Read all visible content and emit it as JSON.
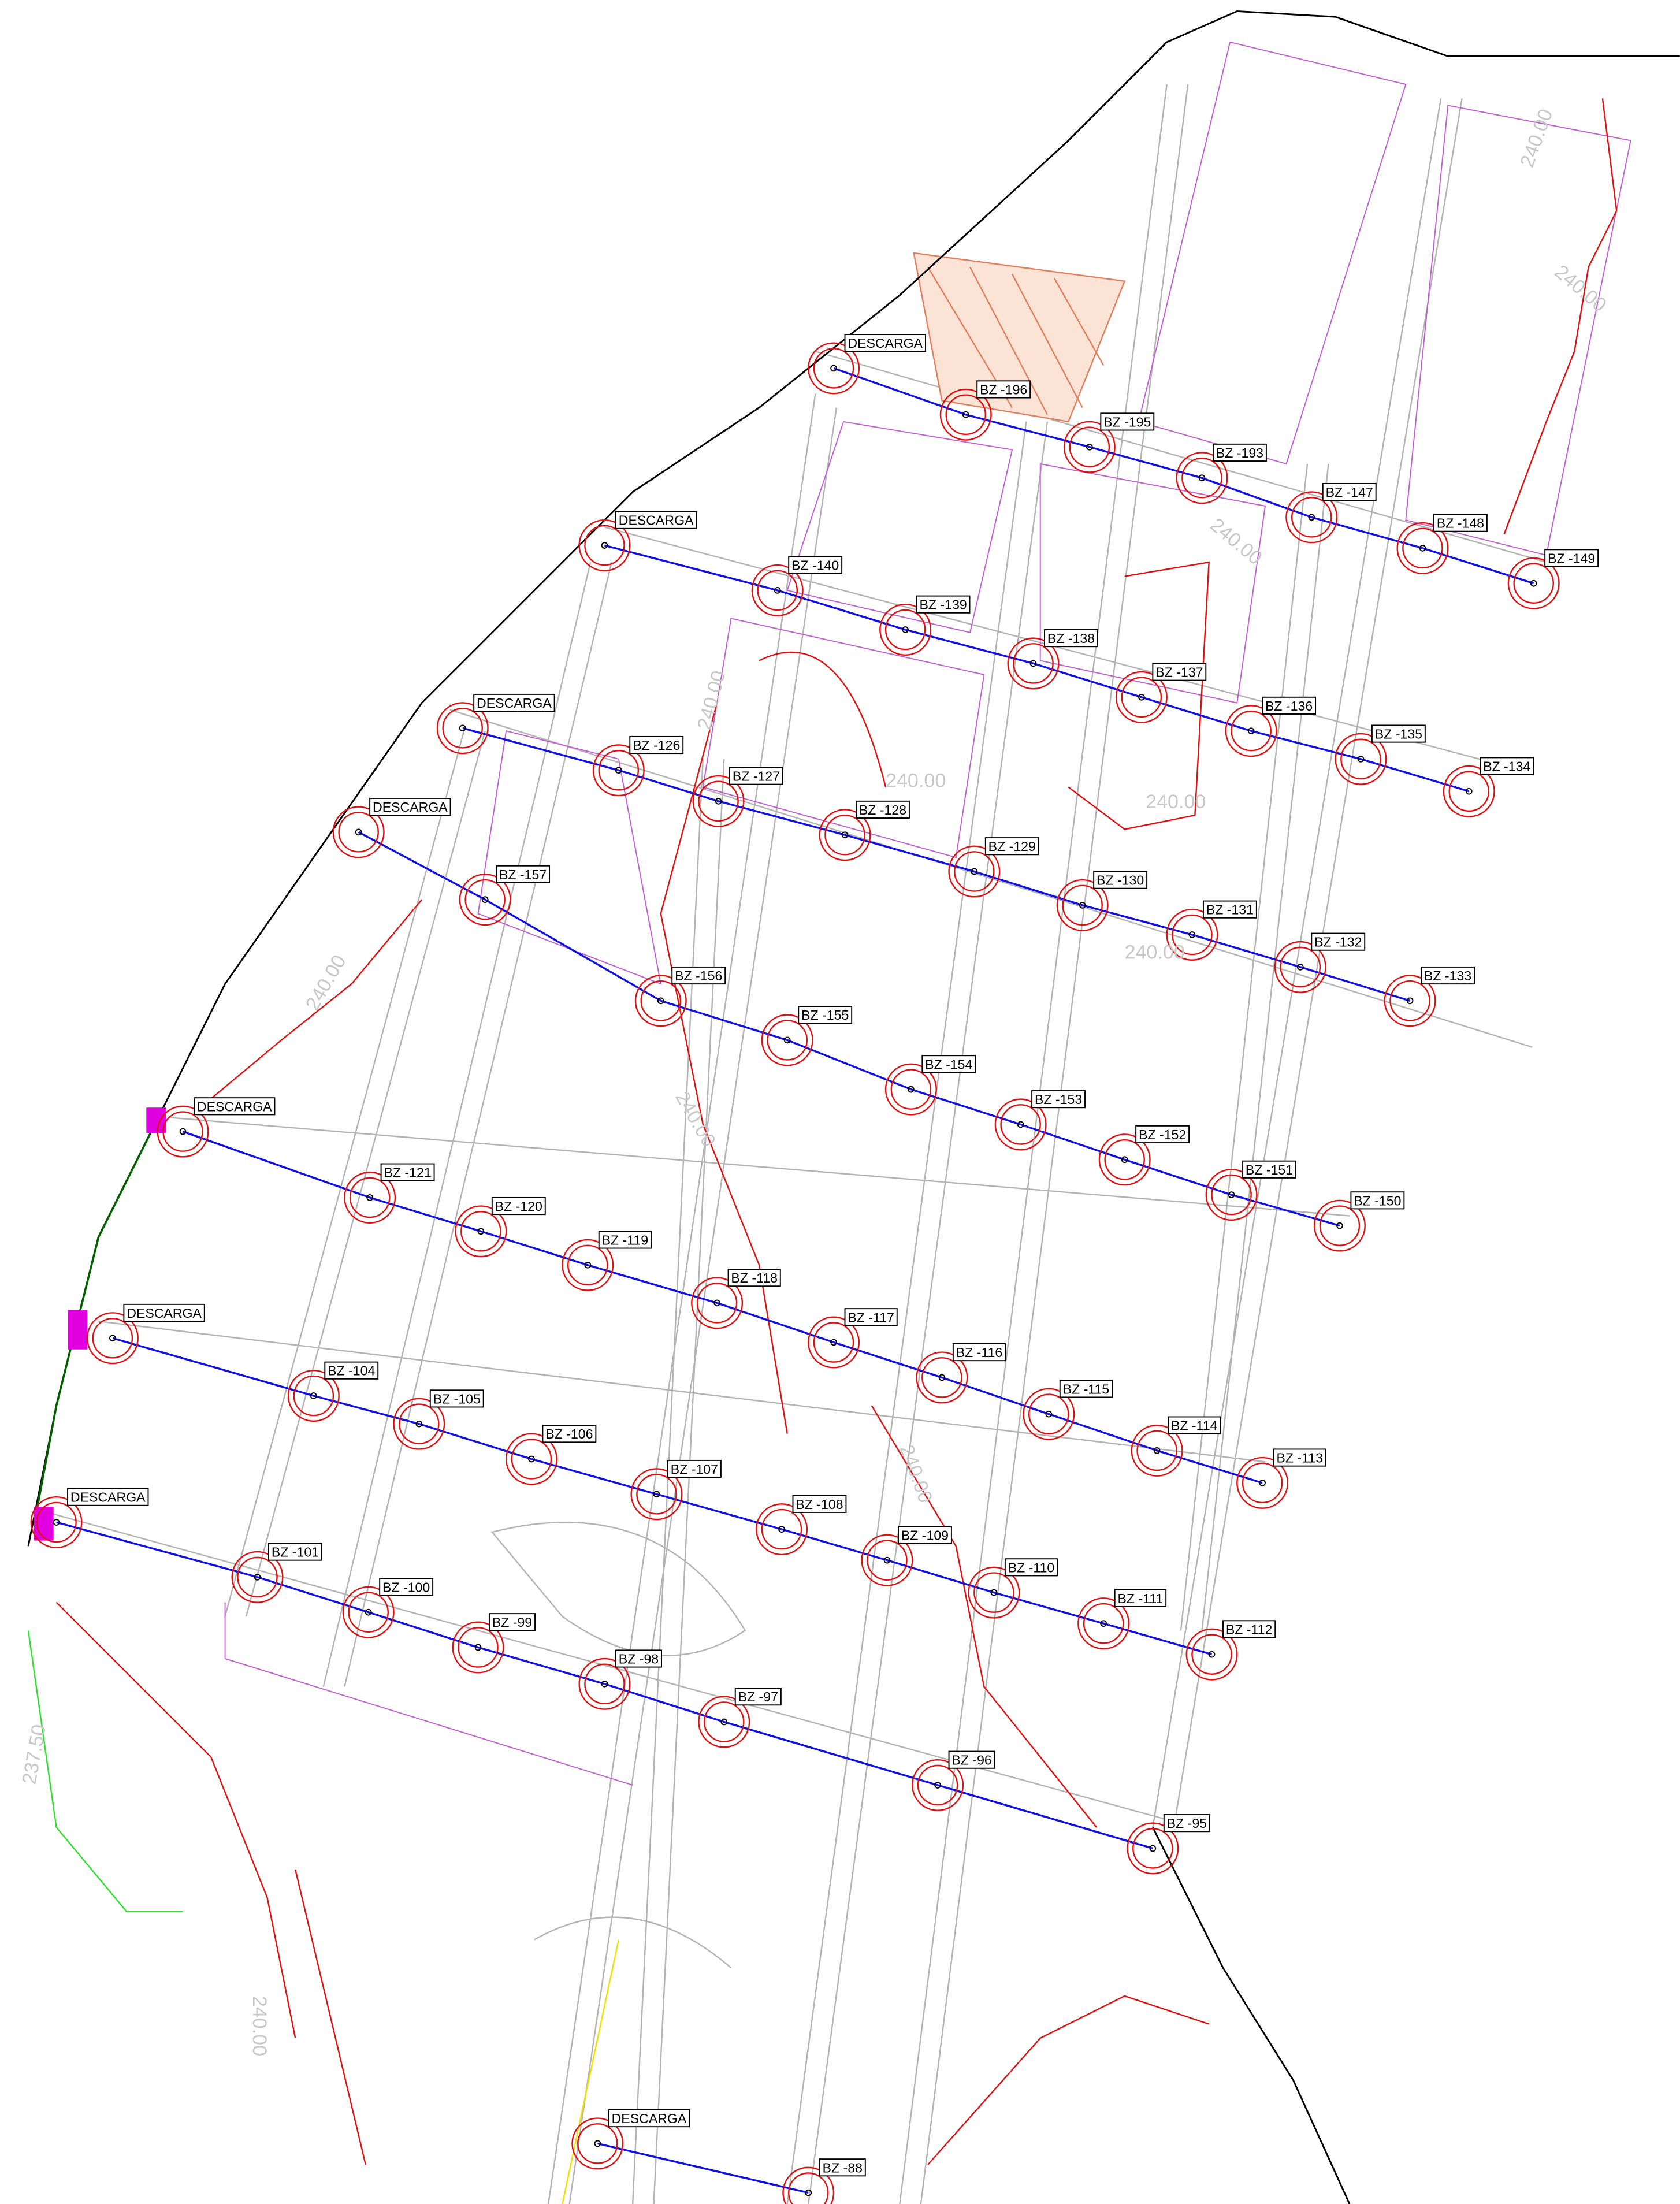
{
  "manholes": [
    "DESCARGA",
    "BZ -196",
    "BZ -195",
    "BZ -193",
    "BZ -147",
    "BZ -148",
    "BZ -149",
    "DESCARGA",
    "BZ -140",
    "BZ -139",
    "BZ -138",
    "BZ -137",
    "BZ -136",
    "BZ -135",
    "BZ -134",
    "DESCARGA",
    "BZ -126",
    "BZ -127",
    "BZ -128",
    "BZ -129",
    "BZ -130",
    "BZ -131",
    "BZ -132",
    "BZ -133",
    "DESCARGA",
    "BZ -157",
    "BZ -156",
    "BZ -155",
    "BZ -154",
    "BZ -153",
    "BZ -152",
    "BZ -151",
    "BZ -150",
    "DESCARGA",
    "BZ -121",
    "BZ -120",
    "BZ -119",
    "BZ -118",
    "BZ -117",
    "BZ -116",
    "BZ -115",
    "BZ -114",
    "BZ -113",
    "DESCARGA",
    "BZ -104",
    "BZ -105",
    "BZ -106",
    "BZ -107",
    "BZ -108",
    "BZ -109",
    "BZ -110",
    "BZ -111",
    "BZ -112",
    "DESCARGA",
    "BZ -101",
    "BZ -100",
    "BZ -99",
    "BZ -98",
    "BZ -97",
    "BZ -96",
    "BZ -95",
    "DESCARGA",
    "BZ -88"
  ],
  "contour_labels": [
    "240.00",
    "240.00",
    "240.00",
    "240.00",
    "240.00",
    "240.00",
    "240.00",
    "240.00",
    "240.00",
    "240.00",
    "237.50",
    "240.00"
  ]
}
